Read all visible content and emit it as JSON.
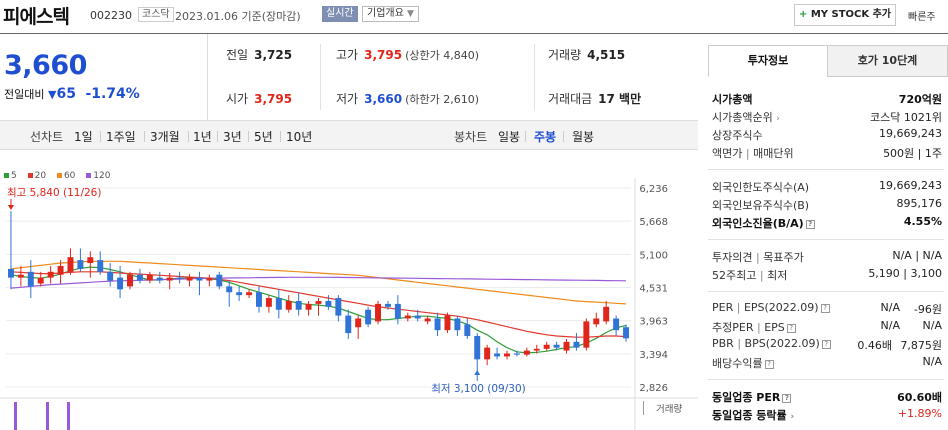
{
  "header": {
    "company_name": "피에스텍",
    "code": "002230",
    "market": "코스닥",
    "date": "2023.01.06",
    "date_suffix": "기준(장마감)",
    "realtime_label": "실시간",
    "company_info_label": "기업개요",
    "my_stock_label": "MY STOCK 추가",
    "quick_label": "빠른주",
    "icons": {
      "plus": "plus-icon",
      "dropdown": "chevron-down-icon"
    }
  },
  "price": {
    "current": "3,660",
    "change_label": "전일대비",
    "change": "65",
    "change_pct": "-1.74%",
    "color": "#1f4fd1"
  },
  "stats": {
    "prev_close_label": "전일",
    "prev_close": "3,725",
    "high_label": "고가",
    "high": "3,795",
    "upper_limit": "(상한가 4,840)",
    "volume_label": "거래량",
    "volume": "4,515",
    "open_label": "시가",
    "open": "3,795",
    "low_label": "저가",
    "low": "3,660",
    "lower_limit": "(하한가 2,610)",
    "amount_label": "거래대금",
    "amount": "17 백만"
  },
  "period_bar": {
    "line_label": "선차트",
    "line_items": [
      "1일",
      "1주일",
      "3개월",
      "1년",
      "3년",
      "5년",
      "10년"
    ],
    "candle_label": "봉차트",
    "candle_items": [
      "일봉",
      "주봉",
      "월봉"
    ],
    "candle_selected": 1
  },
  "chart_data": {
    "type": "candlestick",
    "ma_legend": [
      {
        "name": "5",
        "color": "#2e9e3a"
      },
      {
        "name": "20",
        "color": "#e03a2e"
      },
      {
        "name": "60",
        "color": "#f08a1c"
      },
      {
        "name": "120",
        "color": "#9a5ad8"
      }
    ],
    "y_ticks": [
      "6,236",
      "5,668",
      "5,100",
      "4,531",
      "3,963",
      "3,394",
      "2,826"
    ],
    "ylim": [
      2826,
      6236
    ],
    "max_annotation": "최고 5,840 (11/26)",
    "min_annotation": "최저 3,100 (09/30)",
    "volume_label": "거래량",
    "up_color": "#e0251b",
    "down_color": "#2f74d6",
    "candles": [
      {
        "o": 4850,
        "h": 5840,
        "l": 4500,
        "c": 4700
      },
      {
        "o": 4700,
        "h": 4900,
        "l": 4550,
        "c": 4750
      },
      {
        "o": 4800,
        "h": 5000,
        "l": 4350,
        "c": 4550
      },
      {
        "o": 4600,
        "h": 4800,
        "l": 4550,
        "c": 4700
      },
      {
        "o": 4700,
        "h": 4900,
        "l": 4600,
        "c": 4800
      },
      {
        "o": 4750,
        "h": 5000,
        "l": 4600,
        "c": 4900
      },
      {
        "o": 4800,
        "h": 5200,
        "l": 4750,
        "c": 5050
      },
      {
        "o": 5000,
        "h": 5200,
        "l": 4800,
        "c": 4850
      },
      {
        "o": 4950,
        "h": 5150,
        "l": 4700,
        "c": 5050
      },
      {
        "o": 5000,
        "h": 5150,
        "l": 4750,
        "c": 4800
      },
      {
        "o": 4800,
        "h": 4950,
        "l": 4550,
        "c": 4650
      },
      {
        "o": 4700,
        "h": 4900,
        "l": 4350,
        "c": 4500
      },
      {
        "o": 4550,
        "h": 4800,
        "l": 4500,
        "c": 4750
      },
      {
        "o": 4750,
        "h": 4850,
        "l": 4600,
        "c": 4650
      },
      {
        "o": 4650,
        "h": 4800,
        "l": 4600,
        "c": 4750
      },
      {
        "o": 4700,
        "h": 4800,
        "l": 4600,
        "c": 4650
      },
      {
        "o": 4650,
        "h": 4780,
        "l": 4500,
        "c": 4700
      },
      {
        "o": 4700,
        "h": 4800,
        "l": 4600,
        "c": 4680
      },
      {
        "o": 4650,
        "h": 4760,
        "l": 4550,
        "c": 4700
      },
      {
        "o": 4700,
        "h": 4800,
        "l": 4400,
        "c": 4650
      },
      {
        "o": 4650,
        "h": 4750,
        "l": 4550,
        "c": 4700
      },
      {
        "o": 4750,
        "h": 4800,
        "l": 4500,
        "c": 4550
      },
      {
        "o": 4550,
        "h": 4650,
        "l": 4200,
        "c": 4450
      },
      {
        "o": 4450,
        "h": 4550,
        "l": 4300,
        "c": 4400
      },
      {
        "o": 4400,
        "h": 4500,
        "l": 4350,
        "c": 4450
      },
      {
        "o": 4450,
        "h": 4550,
        "l": 4100,
        "c": 4200
      },
      {
        "o": 4200,
        "h": 4400,
        "l": 4100,
        "c": 4350
      },
      {
        "o": 4350,
        "h": 4500,
        "l": 4000,
        "c": 4150
      },
      {
        "o": 4150,
        "h": 4400,
        "l": 4100,
        "c": 4300
      },
      {
        "o": 4300,
        "h": 4450,
        "l": 4050,
        "c": 4150
      },
      {
        "o": 4150,
        "h": 4300,
        "l": 4050,
        "c": 4250
      },
      {
        "o": 4250,
        "h": 4350,
        "l": 4050,
        "c": 4300
      },
      {
        "o": 4300,
        "h": 4400,
        "l": 4150,
        "c": 4200
      },
      {
        "o": 4350,
        "h": 4400,
        "l": 3950,
        "c": 4050
      },
      {
        "o": 4050,
        "h": 4150,
        "l": 3650,
        "c": 3750
      },
      {
        "o": 3850,
        "h": 4050,
        "l": 3650,
        "c": 4000
      },
      {
        "o": 4150,
        "h": 4200,
        "l": 3850,
        "c": 3900
      },
      {
        "o": 3950,
        "h": 4300,
        "l": 3900,
        "c": 4250
      },
      {
        "o": 4250,
        "h": 4300,
        "l": 4150,
        "c": 4200
      },
      {
        "o": 4250,
        "h": 4400,
        "l": 3900,
        "c": 4000
      },
      {
        "o": 4000,
        "h": 4100,
        "l": 3950,
        "c": 4050
      },
      {
        "o": 4050,
        "h": 4150,
        "l": 3950,
        "c": 4000
      },
      {
        "o": 3950,
        "h": 4050,
        "l": 3900,
        "c": 4000
      },
      {
        "o": 4000,
        "h": 4100,
        "l": 3700,
        "c": 3800
      },
      {
        "o": 3800,
        "h": 4100,
        "l": 3750,
        "c": 4050
      },
      {
        "o": 4000,
        "h": 4050,
        "l": 3700,
        "c": 3800
      },
      {
        "o": 3900,
        "h": 4000,
        "l": 3650,
        "c": 3700
      },
      {
        "o": 3700,
        "h": 3750,
        "l": 3100,
        "c": 3300
      },
      {
        "o": 3300,
        "h": 3550,
        "l": 3200,
        "c": 3500
      },
      {
        "o": 3400,
        "h": 3500,
        "l": 3300,
        "c": 3350
      },
      {
        "o": 3350,
        "h": 3450,
        "l": 3300,
        "c": 3400
      },
      {
        "o": 3400,
        "h": 3450,
        "l": 3350,
        "c": 3380
      },
      {
        "o": 3380,
        "h": 3500,
        "l": 3350,
        "c": 3450
      },
      {
        "o": 3450,
        "h": 3550,
        "l": 3400,
        "c": 3480
      },
      {
        "o": 3480,
        "h": 3600,
        "l": 3450,
        "c": 3550
      },
      {
        "o": 3550,
        "h": 3600,
        "l": 3450,
        "c": 3500
      },
      {
        "o": 3450,
        "h": 3650,
        "l": 3400,
        "c": 3600
      },
      {
        "o": 3600,
        "h": 3750,
        "l": 3450,
        "c": 3500
      },
      {
        "o": 3500,
        "h": 4000,
        "l": 3450,
        "c": 3950
      },
      {
        "o": 3900,
        "h": 4100,
        "l": 3850,
        "c": 4000
      },
      {
        "o": 3950,
        "h": 4300,
        "l": 3900,
        "c": 4200
      },
      {
        "o": 4000,
        "h": 4050,
        "l": 3700,
        "c": 3800
      },
      {
        "o": 3850,
        "h": 3900,
        "l": 3600,
        "c": 3660
      }
    ],
    "ma5": [
      4750,
      4720,
      4700,
      4690,
      4720,
      4760,
      4820,
      4860,
      4880,
      4870,
      4840,
      4800,
      4750,
      4700,
      4660,
      4660,
      4680,
      4690,
      4690,
      4690,
      4680,
      4660,
      4620,
      4560,
      4500,
      4450,
      4400,
      4350,
      4300,
      4260,
      4240,
      4230,
      4210,
      4180,
      4120,
      4060,
      4000,
      3980,
      3980,
      4000,
      4020,
      4040,
      4040,
      4020,
      4000,
      3960,
      3900,
      3800,
      3720,
      3600,
      3500,
      3430,
      3410,
      3420,
      3440,
      3470,
      3500,
      3520,
      3580,
      3660,
      3760,
      3840,
      3880
    ],
    "ma20": [
      4800,
      4790,
      4780,
      4770,
      4770,
      4780,
      4790,
      4800,
      4800,
      4800,
      4790,
      4780,
      4770,
      4760,
      4750,
      4740,
      4730,
      4720,
      4710,
      4700,
      4690,
      4670,
      4650,
      4620,
      4590,
      4560,
      4530,
      4500,
      4470,
      4440,
      4410,
      4380,
      4350,
      4320,
      4290,
      4260,
      4230,
      4200,
      4180,
      4160,
      4140,
      4120,
      4100,
      4080,
      4060,
      4040,
      4010,
      3980,
      3940,
      3900,
      3860,
      3820,
      3780,
      3750,
      3720,
      3700,
      3690,
      3680,
      3680,
      3690,
      3700,
      3700,
      3690
    ],
    "ma60": [
      4850,
      4870,
      4890,
      4910,
      4930,
      4950,
      4960,
      4970,
      4980,
      4980,
      4980,
      4980,
      4970,
      4960,
      4950,
      4940,
      4930,
      4920,
      4910,
      4900,
      4890,
      4880,
      4870,
      4860,
      4850,
      4840,
      4830,
      4820,
      4810,
      4800,
      4790,
      4780,
      4770,
      4760,
      4750,
      4740,
      4720,
      4700,
      4680,
      4660,
      4640,
      4620,
      4600,
      4580,
      4560,
      4540,
      4520,
      4500,
      4480,
      4460,
      4440,
      4420,
      4400,
      4380,
      4360,
      4340,
      4320,
      4300,
      4290,
      4280,
      4270,
      4260,
      4250
    ],
    "ma120": [
      4520,
      4535,
      4550,
      4565,
      4580,
      4590,
      4600,
      4610,
      4620,
      4630,
      4640,
      4645,
      4650,
      4655,
      4660,
      4665,
      4670,
      4675,
      4680,
      4685,
      4690,
      4692,
      4694,
      4696,
      4698,
      4700,
      4702,
      4704,
      4705,
      4706,
      4706,
      4706,
      4705,
      4704,
      4702,
      4700,
      4698,
      4696,
      4694,
      4692,
      4690,
      4688,
      4686,
      4684,
      4682,
      4680,
      4678,
      4676,
      4674,
      4672,
      4670,
      4668,
      4666,
      4664,
      4662,
      4660,
      4658,
      4656,
      4654,
      4652,
      4650,
      4648,
      4646
    ]
  },
  "right_panel": {
    "tab_invest": "투자정보",
    "tab_hoga": "호가 10단계",
    "market_cap_label": "시가총액",
    "market_cap": "720억원",
    "market_cap_rank_label": "시가총액순위",
    "market_cap_rank": "코스닥 1021위",
    "shares_label": "상장주식수",
    "shares": "19,669,243",
    "face_label": "액면가",
    "unit_label": "매매단위",
    "face_unit": "500원 | 1주",
    "foreign_limit_label": "외국인한도주식수(A)",
    "foreign_limit": "19,669,243",
    "foreign_hold_label": "외국인보유주식수(B)",
    "foreign_hold": "895,176",
    "foreign_ratio_label": "외국인소진율(B/A)",
    "foreign_ratio": "4.55%",
    "opinion_label": "투자의견",
    "target_label": "목표주가",
    "opinion_target": "N/A | N/A",
    "week52_label": "52주최고",
    "week52_low_label": "최저",
    "week52": "5,190 | 3,100",
    "per_label": "PER",
    "eps_label": "EPS(2022.09)",
    "per": "N/A",
    "eps": "-96원",
    "est_per_label": "추정PER",
    "est_eps_label": "EPS",
    "est_per": "N/A",
    "est_eps": "N/A",
    "pbr_label": "PBR",
    "bps_label": "BPS(2022.09)",
    "pbr": "0.46배",
    "bps": "7,875원",
    "div_label": "배당수익률",
    "div": "N/A",
    "sector_per_label": "동일업종 PER",
    "sector_per": "60.60배",
    "sector_change_label": "동일업종 등락률",
    "sector_change": "+1.89%"
  }
}
